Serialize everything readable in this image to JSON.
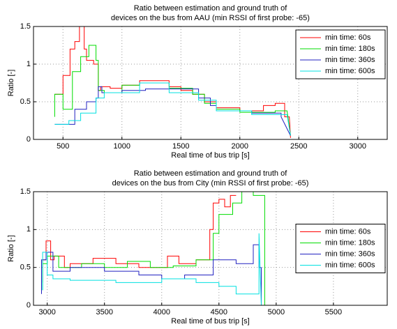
{
  "chart_data": [
    {
      "type": "line",
      "title": [
        "Ratio between estimation and ground truth of",
        "devices on the bus from AAU (min RSSI of first probe: -65)"
      ],
      "x_label": "Real time of bus trip [s]",
      "y_label": "Ratio [-]",
      "xlim": [
        250,
        3250
      ],
      "xticks": [
        500,
        1000,
        1500,
        2000,
        2500,
        3000
      ],
      "ylim": [
        0,
        1.5
      ],
      "yticks": [
        0,
        0.5,
        1,
        1.5
      ],
      "grid": true,
      "legend": "upper right",
      "series": [
        {
          "name": "min time: 60s",
          "color": "#ff0000",
          "x": [
            430,
            430,
            500,
            500,
            560,
            560,
            600,
            600,
            640,
            640,
            680,
            680,
            700,
            700,
            760,
            760,
            800,
            800,
            820,
            820,
            900,
            900,
            1000,
            1000,
            1150,
            1150,
            1400,
            1400,
            1500,
            1500,
            1600,
            1600,
            1700,
            1700,
            1800,
            1800,
            2000,
            2000,
            2200,
            2200,
            2300,
            2300,
            2380,
            2380,
            2420,
            2430
          ],
          "values": [
            0.6,
            0.6,
            0.6,
            0.85,
            0.85,
            1.2,
            1.2,
            1.3,
            1.3,
            1.5,
            1.5,
            1.2,
            1.2,
            1.05,
            1.05,
            1.0,
            1.0,
            0.65,
            0.65,
            0.7,
            0.7,
            0.68,
            0.68,
            0.72,
            0.72,
            0.78,
            0.78,
            0.7,
            0.7,
            0.65,
            0.65,
            0.6,
            0.6,
            0.5,
            0.5,
            0.42,
            0.42,
            0.38,
            0.38,
            0.45,
            0.45,
            0.48,
            0.48,
            0.3,
            0.3,
            0.02
          ]
        },
        {
          "name": "min time: 180s",
          "color": "#00dd00",
          "x": [
            430,
            430,
            500,
            500,
            580,
            580,
            650,
            650,
            720,
            720,
            780,
            780,
            800,
            800,
            850,
            850,
            1000,
            1000,
            1150,
            1150,
            1400,
            1400,
            1600,
            1600,
            1700,
            1700,
            1800,
            1800,
            2000,
            2000,
            2300,
            2300,
            2400,
            2430
          ],
          "values": [
            0.3,
            0.6,
            0.6,
            0.4,
            0.4,
            0.9,
            0.9,
            1.1,
            1.1,
            1.25,
            1.25,
            1.05,
            1.05,
            0.65,
            0.65,
            0.62,
            0.62,
            0.72,
            0.72,
            0.75,
            0.75,
            0.68,
            0.68,
            0.6,
            0.6,
            0.48,
            0.48,
            0.4,
            0.4,
            0.36,
            0.36,
            0.38,
            0.38,
            0.05
          ]
        },
        {
          "name": "min time: 360s",
          "color": "#2020c0",
          "x": [
            430,
            430,
            600,
            600,
            700,
            700,
            780,
            780,
            800,
            800,
            830,
            830,
            1000,
            1000,
            1200,
            1200,
            1650,
            1650,
            1750,
            1750,
            1800,
            1800,
            2100,
            2100,
            2350,
            2350,
            2430
          ],
          "values": [
            0.2,
            0.2,
            0.2,
            0.4,
            0.4,
            0.5,
            0.5,
            0.55,
            0.55,
            0.7,
            0.7,
            0.62,
            0.62,
            0.65,
            0.65,
            0.67,
            0.67,
            0.55,
            0.55,
            0.45,
            0.45,
            0.38,
            0.38,
            0.35,
            0.35,
            0.3,
            0.05
          ]
        },
        {
          "name": "min time: 600s",
          "color": "#00e0e0",
          "x": [
            430,
            430,
            550,
            550,
            650,
            650,
            780,
            780,
            850,
            850,
            1150,
            1150,
            1400,
            1400,
            1650,
            1650,
            1800,
            1800,
            2100,
            2100,
            2400,
            2430
          ],
          "values": [
            0.2,
            0.2,
            0.2,
            0.25,
            0.25,
            0.35,
            0.35,
            0.55,
            0.55,
            0.62,
            0.62,
            0.75,
            0.75,
            0.62,
            0.62,
            0.52,
            0.52,
            0.38,
            0.38,
            0.33,
            0.33,
            0.05
          ]
        }
      ]
    },
    {
      "type": "line",
      "title": [
        "Ratio between estimation and ground truth of",
        "devices on the bus from City (min RSSI of first probe: -65)"
      ],
      "x_label": "Real time of bus trip [s]",
      "y_label": "Ratio [-]",
      "xlim": [
        2880,
        5970
      ],
      "xticks": [
        3000,
        3500,
        4000,
        4500,
        5000,
        5500
      ],
      "ylim": [
        0,
        1.5
      ],
      "yticks": [
        0,
        0.5,
        1,
        1.5
      ],
      "grid": true,
      "legend": "center right",
      "series": [
        {
          "name": "min time: 60s",
          "color": "#ff0000",
          "x": [
            2960,
            2960,
            2990,
            2990,
            3030,
            3030,
            3060,
            3060,
            3150,
            3150,
            3200,
            3200,
            3400,
            3400,
            3600,
            3600,
            3800,
            3800,
            4050,
            4050,
            4150,
            4150,
            4300,
            4300,
            4420,
            4420,
            4450,
            4450,
            4500,
            4500,
            4550,
            4550,
            4600,
            4600,
            4650
          ],
          "values": [
            0.3,
            0.6,
            0.6,
            0.85,
            0.85,
            0.6,
            0.6,
            0.65,
            0.65,
            0.5,
            0.5,
            0.55,
            0.55,
            0.62,
            0.62,
            0.55,
            0.55,
            0.5,
            0.5,
            0.65,
            0.65,
            0.55,
            0.55,
            0.6,
            0.6,
            1.0,
            1.0,
            1.35,
            1.35,
            1.4,
            1.4,
            1.3,
            1.3,
            1.45,
            1.45
          ]
        },
        {
          "name": "min time: 180s",
          "color": "#00dd00",
          "x": [
            2960,
            2960,
            3000,
            3000,
            3100,
            3100,
            3300,
            3300,
            3500,
            3500,
            3700,
            3700,
            3900,
            3900,
            4100,
            4100,
            4300,
            4300,
            4450,
            4450,
            4500,
            4500,
            4620,
            4620,
            4700,
            4700,
            4800,
            4800,
            4900,
            4900
          ],
          "values": [
            0.2,
            0.55,
            0.55,
            0.65,
            0.65,
            0.5,
            0.5,
            0.55,
            0.55,
            0.5,
            0.5,
            0.58,
            0.58,
            0.5,
            0.5,
            0.52,
            0.52,
            0.6,
            0.6,
            0.95,
            0.95,
            1.2,
            1.2,
            1.35,
            1.35,
            1.5,
            1.5,
            1.45,
            1.45,
            0
          ]
        },
        {
          "name": "min time: 360s",
          "color": "#2020c0",
          "x": [
            2950,
            2950,
            2990,
            2990,
            3050,
            3050,
            3200,
            3200,
            3500,
            3500,
            3800,
            3800,
            4000,
            4000,
            4200,
            4200,
            4450,
            4450,
            4650,
            4650,
            4800,
            4800,
            4850,
            4850,
            4870,
            4870
          ],
          "values": [
            0.15,
            0.6,
            0.6,
            0.7,
            0.7,
            0.45,
            0.45,
            0.5,
            0.5,
            0.45,
            0.45,
            0.4,
            0.4,
            0.35,
            0.35,
            0.4,
            0.4,
            0.6,
            0.6,
            0.55,
            0.55,
            0.8,
            0.8,
            0.5,
            0.5,
            0
          ]
        },
        {
          "name": "min time: 600s",
          "color": "#00e0e0",
          "x": [
            2960,
            2960,
            3000,
            3000,
            3050,
            3050,
            3200,
            3200,
            3600,
            3600,
            4000,
            4000,
            4300,
            4300,
            4500,
            4500,
            4650,
            4650,
            4850,
            4850,
            4870
          ],
          "values": [
            0.2,
            0.7,
            0.7,
            0.4,
            0.4,
            0.35,
            0.35,
            0.33,
            0.33,
            0.3,
            0.3,
            0.35,
            0.35,
            0.3,
            0.3,
            0.25,
            0.25,
            0.15,
            0.15,
            0.95,
            0
          ]
        }
      ]
    }
  ]
}
